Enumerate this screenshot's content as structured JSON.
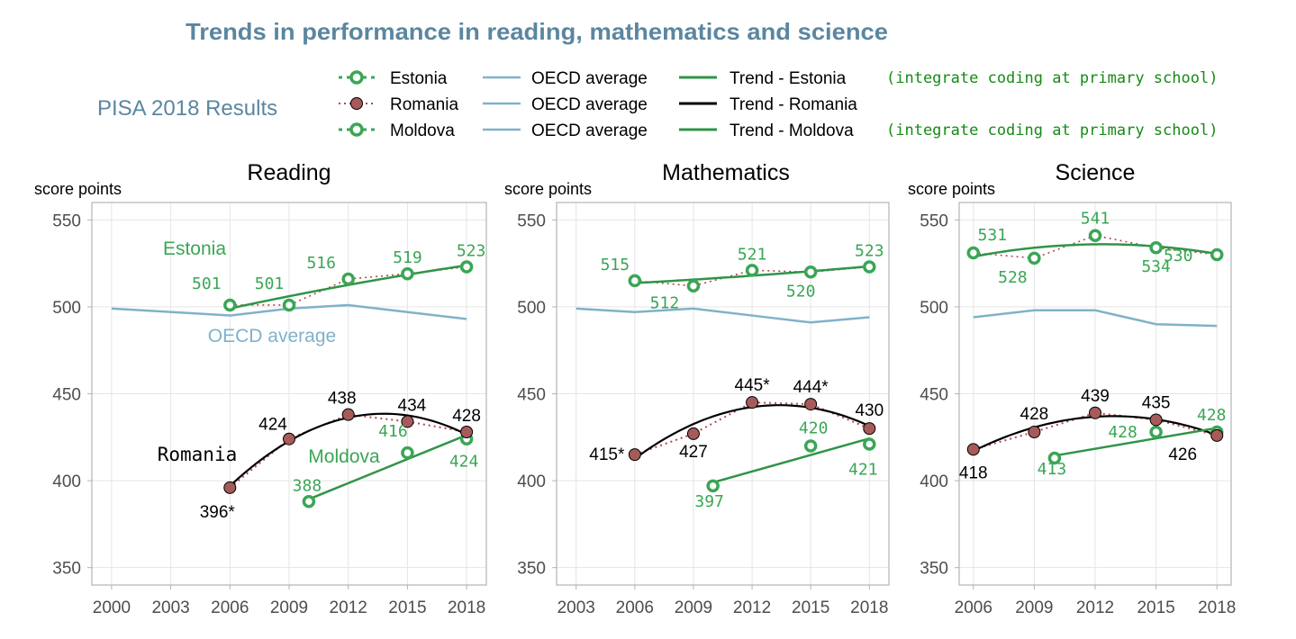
{
  "header": {
    "title": "Trends in performance in reading, mathematics and science",
    "subtitle": "PISA 2018 Results"
  },
  "colors": {
    "green": "#3aa655",
    "trend_green": "#2f9448",
    "oecd": "#7fb2c9",
    "romania_fill": "#a65a5a",
    "romania_dots": "#b0494f",
    "black": "#000000",
    "title_blue": "#5b86a0",
    "note_green": "#168a16",
    "grid": "#e5e5e5",
    "axis": "#b3b3b3",
    "tick_text": "#4d4d4d"
  },
  "legend": {
    "col1": [
      "Estonia",
      "Romania",
      "Moldova"
    ],
    "col2": [
      "OECD average",
      "OECD average",
      "OECD average"
    ],
    "col3": [
      "Trend - Estonia",
      "Trend - Romania",
      "Trend - Moldova"
    ],
    "notes": [
      "(integrate coding at primary school)",
      "",
      "(integrate coding at primary school)"
    ]
  },
  "chart_data": [
    {
      "type": "line",
      "title": "Reading",
      "ylabel": "score points",
      "xlim": [
        1999,
        2019
      ],
      "ylim": [
        340,
        560
      ],
      "xticks": [
        2000,
        2003,
        2006,
        2009,
        2012,
        2015,
        2018
      ],
      "yticks": [
        350,
        400,
        450,
        500,
        550
      ],
      "grid": true,
      "series": [
        {
          "name": "Estonia",
          "x": [
            2006,
            2009,
            2012,
            2015,
            2018
          ],
          "y": [
            501,
            501,
            516,
            519,
            523
          ],
          "labels": [
            "501",
            "501",
            "516",
            "519",
            "523"
          ]
        },
        {
          "name": "Romania",
          "x": [
            2006,
            2009,
            2012,
            2015,
            2018
          ],
          "y": [
            396,
            424,
            438,
            434,
            428
          ],
          "labels": [
            "396*",
            "424",
            "438",
            "434",
            "428"
          ]
        },
        {
          "name": "Moldova",
          "x": [
            2010,
            2015,
            2018
          ],
          "y": [
            388,
            416,
            424
          ],
          "labels": [
            "388",
            "416",
            "424"
          ]
        },
        {
          "name": "OECD average",
          "x": [
            2000,
            2006,
            2009,
            2012,
            2015,
            2018
          ],
          "y": [
            499,
            495,
            499,
            501,
            497,
            493
          ]
        }
      ],
      "annotations": [
        "Estonia",
        "OECD average",
        "Romania",
        "Moldova"
      ]
    },
    {
      "type": "line",
      "title": "Mathematics",
      "ylabel": "score points",
      "xlim": [
        2002,
        2019
      ],
      "ylim": [
        340,
        560
      ],
      "xticks": [
        2003,
        2006,
        2009,
        2012,
        2015,
        2018
      ],
      "yticks": [
        350,
        400,
        450,
        500,
        550
      ],
      "grid": true,
      "series": [
        {
          "name": "Estonia",
          "x": [
            2006,
            2009,
            2012,
            2015,
            2018
          ],
          "y": [
            515,
            512,
            521,
            520,
            523
          ],
          "labels": [
            "515",
            "512",
            "521",
            "520",
            "523"
          ]
        },
        {
          "name": "Romania",
          "x": [
            2006,
            2009,
            2012,
            2015,
            2018
          ],
          "y": [
            415,
            427,
            445,
            444,
            430
          ],
          "labels": [
            "415*",
            "427",
            "445*",
            "444*",
            "430"
          ]
        },
        {
          "name": "Moldova",
          "x": [
            2010,
            2015,
            2018
          ],
          "y": [
            397,
            420,
            421
          ],
          "labels": [
            "397",
            "420",
            "421"
          ]
        },
        {
          "name": "OECD average",
          "x": [
            2003,
            2006,
            2009,
            2012,
            2015,
            2018
          ],
          "y": [
            499,
            497,
            499,
            495,
            491,
            494
          ]
        }
      ]
    },
    {
      "type": "line",
      "title": "Science",
      "ylabel": "score points",
      "xlim": [
        2005.3,
        2018.7
      ],
      "ylim": [
        340,
        560
      ],
      "xticks": [
        2006,
        2009,
        2012,
        2015,
        2018
      ],
      "yticks": [
        350,
        400,
        450,
        500,
        550
      ],
      "grid": true,
      "series": [
        {
          "name": "Estonia",
          "x": [
            2006,
            2009,
            2012,
            2015,
            2018
          ],
          "y": [
            531,
            528,
            541,
            534,
            530
          ],
          "labels": [
            "531",
            "528",
            "541",
            "534",
            "530"
          ]
        },
        {
          "name": "Romania",
          "x": [
            2006,
            2009,
            2012,
            2015,
            2018
          ],
          "y": [
            418,
            428,
            439,
            435,
            426
          ],
          "labels": [
            "418",
            "428",
            "439",
            "435",
            "426"
          ]
        },
        {
          "name": "Moldova",
          "x": [
            2010,
            2015,
            2018
          ],
          "y": [
            413,
            428,
            428
          ],
          "labels": [
            "413",
            "428",
            "428"
          ]
        },
        {
          "name": "OECD average",
          "x": [
            2006,
            2009,
            2012,
            2015,
            2018
          ],
          "y": [
            494,
            498,
            498,
            490,
            489
          ]
        }
      ]
    }
  ]
}
